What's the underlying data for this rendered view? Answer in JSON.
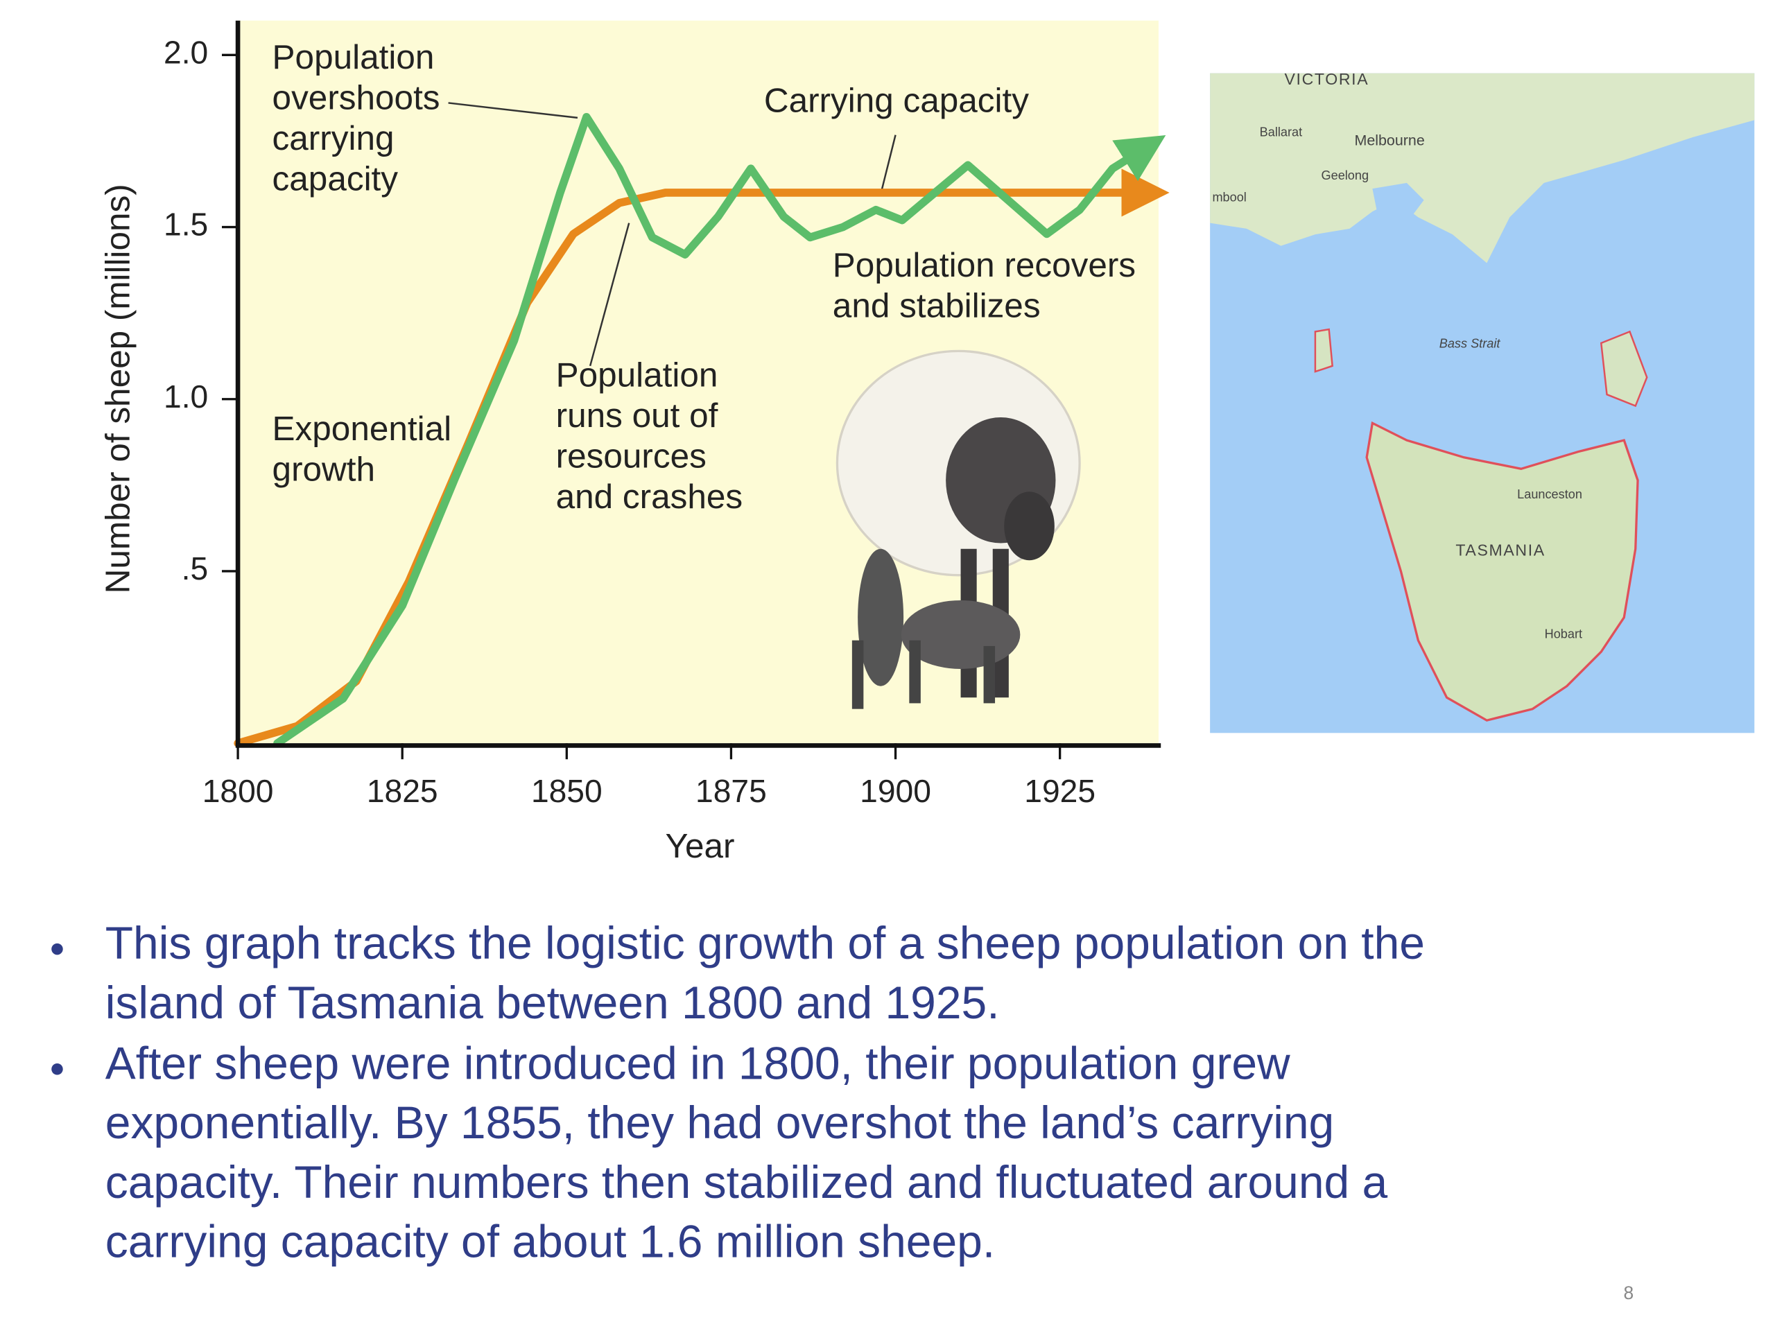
{
  "chart_data": {
    "type": "line",
    "xlabel": "Year",
    "ylabel": "Number of sheep (millions)",
    "xlim": [
      1800,
      1940
    ],
    "ylim": [
      0,
      2.1
    ],
    "xticks": [
      1800,
      1825,
      1850,
      1875,
      1900,
      1925
    ],
    "yticks": [
      {
        "value": 0.5,
        "label": ".5"
      },
      {
        "value": 1.0,
        "label": "1.0"
      },
      1.5,
      {
        "value": 2.0,
        "label": "2.0"
      }
    ],
    "series": [
      {
        "color": "#e8891c",
        "x": [
          1800,
          1809,
          1818,
          1826,
          1835,
          1844,
          1851,
          1858,
          1865,
          1938
        ],
        "values": [
          0,
          0.05,
          0.18,
          0.47,
          0.87,
          1.28,
          1.48,
          1.57,
          1.6,
          1.6
        ]
      },
      {
        "color": "#5cbd6a",
        "x": [
          1806,
          1816,
          1825,
          1833,
          1842,
          1849,
          1853,
          1858,
          1863,
          1868,
          1873,
          1878,
          1883,
          1887,
          1892,
          1897,
          1901,
          1906,
          1911,
          1917,
          1923,
          1928,
          1933,
          1938
        ],
        "values": [
          0,
          0.13,
          0.4,
          0.77,
          1.17,
          1.6,
          1.82,
          1.67,
          1.47,
          1.42,
          1.53,
          1.67,
          1.53,
          1.47,
          1.5,
          1.55,
          1.52,
          1.6,
          1.68,
          1.58,
          1.48,
          1.55,
          1.67,
          1.73
        ]
      }
    ],
    "annotations": [
      [
        "Population",
        "overshoots",
        "carrying",
        "capacity"
      ],
      [
        "Carrying capacity"
      ],
      [
        "Population recovers",
        "and stabilizes"
      ],
      [
        "Population",
        "runs out of",
        "resources",
        "and crashes"
      ],
      [
        "Exponential",
        "growth"
      ]
    ]
  },
  "map": {
    "labels": [
      "VICTORIA",
      "Ballarat",
      "Melbourne",
      "Geelong",
      "mbool",
      "Bass Strait",
      "Launceston",
      "TASMANIA",
      "Hobart"
    ]
  },
  "bullets": [
    [
      "This graph tracks the logistic growth of a sheep population on the",
      "island of Tasmania between 1800 and 1925."
    ],
    [
      "After sheep were introduced in 1800, their population grew",
      "exponentially. By 1855, they had overshot the land’s carrying",
      "capacity. Their numbers then stabilized and fluctuated around a",
      "carrying capacity of about 1.6 million sheep."
    ]
  ],
  "page_number": 8
}
